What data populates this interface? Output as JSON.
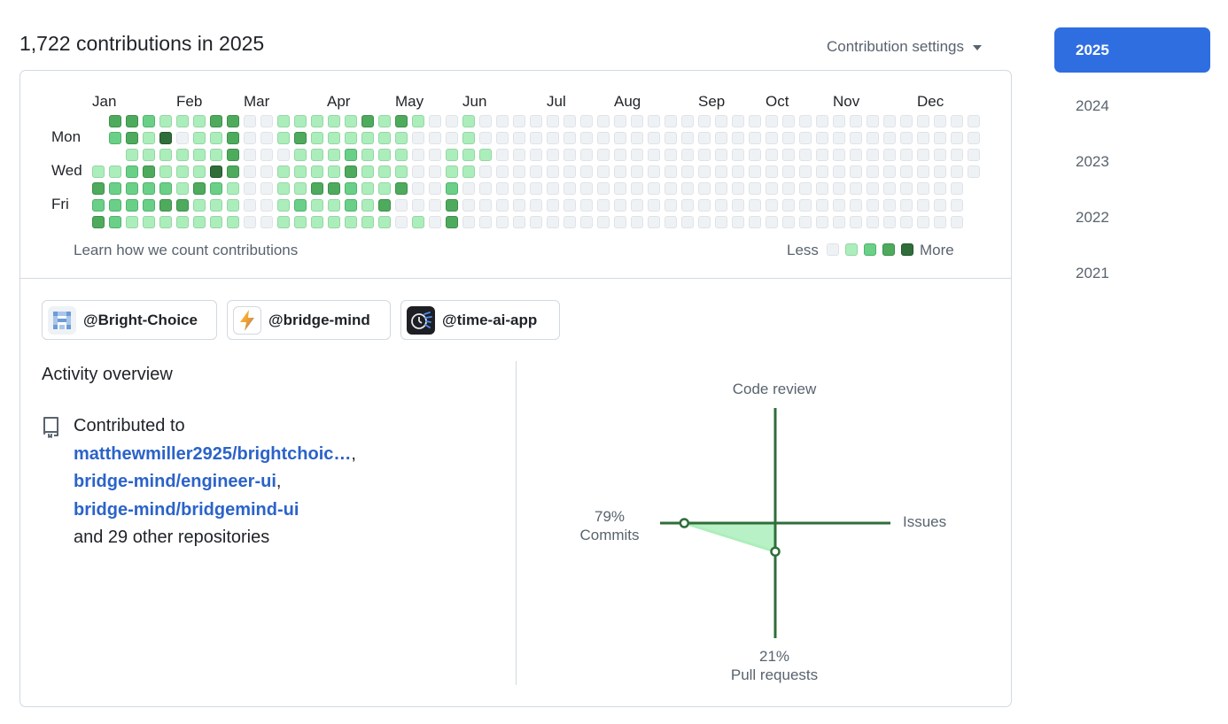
{
  "header": {
    "headline": "1,722 contributions in 2025",
    "settings_label": "Contribution settings"
  },
  "calendar": {
    "months": [
      "Jan",
      "Feb",
      "Mar",
      "Apr",
      "May",
      "Jun",
      "Jul",
      "Aug",
      "Sep",
      "Oct",
      "Nov",
      "Dec"
    ],
    "days": [
      "Mon",
      "Wed",
      "Fri"
    ],
    "learn_link": "Learn how we count contributions",
    "legend_less": "Less",
    "legend_more": "More",
    "colors": [
      "#eff2f5",
      "#aceebb",
      "#6ad087",
      "#4eab5d",
      "#2f6e3a"
    ],
    "weeks": [
      [
        -1,
        -1,
        -1,
        1,
        3,
        2,
        3
      ],
      [
        3,
        2,
        -1,
        1,
        2,
        2,
        2
      ],
      [
        3,
        3,
        1,
        2,
        2,
        2,
        1
      ],
      [
        2,
        1,
        1,
        3,
        2,
        2,
        1
      ],
      [
        1,
        4,
        1,
        1,
        2,
        3,
        1
      ],
      [
        1,
        0,
        1,
        1,
        1,
        3,
        1
      ],
      [
        1,
        1,
        1,
        1,
        3,
        1,
        1
      ],
      [
        3,
        1,
        1,
        4,
        2,
        1,
        1
      ],
      [
        3,
        3,
        3,
        3,
        1,
        1,
        1
      ],
      [
        0,
        0,
        0,
        0,
        0,
        0,
        0
      ],
      [
        0,
        0,
        0,
        0,
        0,
        0,
        0
      ],
      [
        1,
        1,
        0,
        1,
        1,
        1,
        1
      ],
      [
        1,
        3,
        1,
        1,
        1,
        2,
        1
      ],
      [
        1,
        1,
        1,
        1,
        3,
        1,
        1
      ],
      [
        1,
        1,
        1,
        1,
        3,
        1,
        1
      ],
      [
        1,
        1,
        2,
        3,
        2,
        2,
        1
      ],
      [
        3,
        1,
        1,
        1,
        1,
        1,
        1
      ],
      [
        1,
        1,
        1,
        1,
        1,
        3,
        1
      ],
      [
        3,
        1,
        1,
        1,
        3,
        0,
        0
      ],
      [
        1,
        0,
        0,
        0,
        0,
        0,
        1
      ],
      [
        0,
        0,
        0,
        0,
        0,
        0,
        0
      ],
      [
        0,
        0,
        1,
        1,
        2,
        3,
        3
      ],
      [
        1,
        1,
        1,
        1,
        0,
        0,
        0
      ],
      [
        0,
        0,
        1,
        0,
        0,
        0,
        0
      ],
      [
        0,
        0,
        0,
        0,
        0,
        0,
        0
      ],
      [
        0,
        0,
        0,
        0,
        0,
        0,
        0
      ],
      [
        0,
        0,
        0,
        0,
        0,
        0,
        0
      ],
      [
        0,
        0,
        0,
        0,
        0,
        0,
        0
      ],
      [
        0,
        0,
        0,
        0,
        0,
        0,
        0
      ],
      [
        0,
        0,
        0,
        0,
        0,
        0,
        0
      ],
      [
        0,
        0,
        0,
        0,
        0,
        0,
        0
      ],
      [
        0,
        0,
        0,
        0,
        0,
        0,
        0
      ],
      [
        0,
        0,
        0,
        0,
        0,
        0,
        0
      ],
      [
        0,
        0,
        0,
        0,
        0,
        0,
        0
      ],
      [
        0,
        0,
        0,
        0,
        0,
        0,
        0
      ],
      [
        0,
        0,
        0,
        0,
        0,
        0,
        0
      ],
      [
        0,
        0,
        0,
        0,
        0,
        0,
        0
      ],
      [
        0,
        0,
        0,
        0,
        0,
        0,
        0
      ],
      [
        0,
        0,
        0,
        0,
        0,
        0,
        0
      ],
      [
        0,
        0,
        0,
        0,
        0,
        0,
        0
      ],
      [
        0,
        0,
        0,
        0,
        0,
        0,
        0
      ],
      [
        0,
        0,
        0,
        0,
        0,
        0,
        0
      ],
      [
        0,
        0,
        0,
        0,
        0,
        0,
        0
      ],
      [
        0,
        0,
        0,
        0,
        0,
        0,
        0
      ],
      [
        0,
        0,
        0,
        0,
        0,
        0,
        0
      ],
      [
        0,
        0,
        0,
        0,
        0,
        0,
        0
      ],
      [
        0,
        0,
        0,
        0,
        0,
        0,
        0
      ],
      [
        0,
        0,
        0,
        0,
        0,
        0,
        0
      ],
      [
        0,
        0,
        0,
        0,
        0,
        0,
        0
      ],
      [
        0,
        0,
        0,
        0,
        0,
        0,
        0
      ],
      [
        0,
        0,
        0,
        0,
        0,
        0,
        0
      ],
      [
        0,
        0,
        0,
        0,
        0,
        0,
        0
      ],
      [
        0,
        0,
        0,
        0,
        -1,
        -1,
        -1
      ]
    ]
  },
  "organizations": [
    {
      "name": "@Bright-Choice",
      "icon": "bright-choice-logo-icon"
    },
    {
      "name": "@bridge-mind",
      "icon": "lightning-bolt-logo-icon"
    },
    {
      "name": "@time-ai-app",
      "icon": "clock-logo-icon"
    }
  ],
  "activity": {
    "title": "Activity overview",
    "contributed_to": "Contributed to",
    "repos": [
      "matthewmiller2925/brightchoic…",
      "bridge-mind/engineer-ui",
      "bridge-mind/bridgemind-ui"
    ],
    "others": "and 29 other repositories",
    "chart": {
      "code_review": {
        "label": "Code review",
        "value": null
      },
      "issues": {
        "label": "Issues",
        "value": null
      },
      "commits": {
        "label": "Commits",
        "value": 79,
        "display": "79%"
      },
      "pull_requests": {
        "label": "Pull requests",
        "value": 21,
        "display": "21%"
      },
      "line_color": "#2f6e3a",
      "fill_color": "#aceebb"
    }
  },
  "years": [
    "2025",
    "2024",
    "2023",
    "2022",
    "2021"
  ],
  "selected_year": "2025"
}
